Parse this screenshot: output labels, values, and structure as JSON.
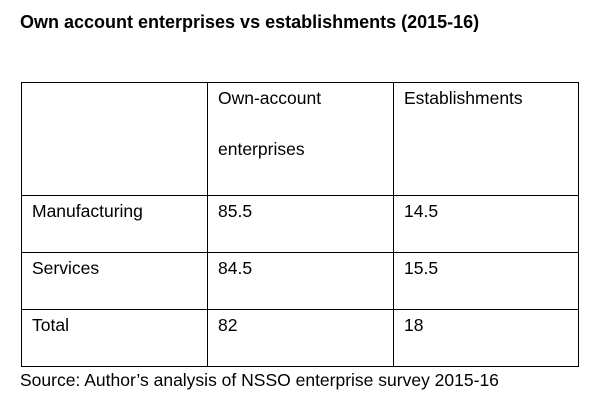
{
  "title": "Own account enterprises vs establishments (2015-16)",
  "table": {
    "header": {
      "corner": "",
      "col1_line1": "Own-account",
      "col1_line2": "enterprises",
      "col2": "Establishments"
    },
    "rows": [
      {
        "label": "Manufacturing",
        "own_account": "85.5",
        "establishments": "14.5"
      },
      {
        "label": "Services",
        "own_account": "84.5",
        "establishments": "15.5"
      },
      {
        "label": "Total",
        "own_account": "82",
        "establishments": "18"
      }
    ]
  },
  "source": "Source: Author’s analysis of NSSO enterprise survey 2015-16"
}
